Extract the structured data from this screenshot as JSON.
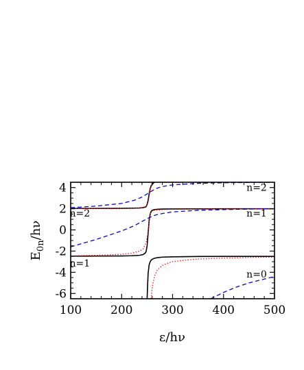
{
  "chart_data": {
    "type": "line",
    "xlabel": "ε/hν",
    "ylabel_main": "E",
    "ylabel_sub": "0n",
    "ylabel_tail": "/hν",
    "xlim": [
      100,
      500
    ],
    "ylim": [
      -6.5,
      4.5
    ],
    "xticks": [
      100,
      200,
      300,
      400,
      500
    ],
    "yticks": [
      -6,
      -4,
      -2,
      0,
      2,
      4
    ],
    "grid": false,
    "annotations": [
      {
        "text": "n=2",
        "x": 465,
        "y": 3.7
      },
      {
        "text": "n=1",
        "x": 465,
        "y": 1.25
      },
      {
        "text": "n=0",
        "x": 465,
        "y": -4.5
      },
      {
        "text": "n=2",
        "x": 118,
        "y": 1.25
      },
      {
        "text": "n=1",
        "x": 118,
        "y": -3.45
      }
    ],
    "series": [
      {
        "color": "#000000",
        "dash": "solid",
        "x": [
          100,
          150,
          200,
          220,
          235,
          242,
          246,
          248,
          250,
          252,
          254,
          256,
          258,
          260,
          264,
          270,
          280,
          300,
          350,
          400,
          450,
          500
        ],
        "y": [
          2.03,
          2.03,
          2.04,
          2.05,
          2.07,
          2.1,
          2.15,
          2.2,
          2.4,
          2.8,
          3.4,
          3.9,
          4.15,
          4.3,
          4.5,
          4.55,
          4.55,
          4.55,
          4.55,
          4.55,
          4.55,
          4.55
        ]
      },
      {
        "color": "#000000",
        "dash": "solid",
        "x": [
          100,
          150,
          200,
          220,
          235,
          242,
          246,
          248,
          250,
          252,
          254,
          256,
          258,
          260,
          264,
          270,
          280,
          300,
          350,
          400,
          450,
          500
        ],
        "y": [
          -2.48,
          -2.47,
          -2.46,
          -2.44,
          -2.4,
          -2.33,
          -2.2,
          -2.05,
          -1.5,
          -0.3,
          0.9,
          1.5,
          1.75,
          1.85,
          1.92,
          1.95,
          1.97,
          1.98,
          1.99,
          2.0,
          2.0,
          2.0
        ]
      },
      {
        "color": "#000000",
        "dash": "solid",
        "x": [
          250,
          251,
          252,
          254,
          256,
          258,
          260,
          264,
          270,
          280,
          300,
          350,
          400,
          450,
          500
        ],
        "y": [
          -6.5,
          -5.2,
          -4.1,
          -3.3,
          -3.0,
          -2.85,
          -2.78,
          -2.68,
          -2.62,
          -2.57,
          -2.54,
          -2.51,
          -2.5,
          -2.5,
          -2.5
        ]
      },
      {
        "color": "#ff0000",
        "dash": "dotted",
        "x": [
          100,
          150,
          200,
          220,
          235,
          242,
          248,
          252,
          254,
          256,
          258,
          260,
          265,
          270,
          280,
          300,
          350,
          400,
          450,
          500
        ],
        "y": [
          2.03,
          2.03,
          2.04,
          2.05,
          2.08,
          2.12,
          2.25,
          2.6,
          3.2,
          3.9,
          4.3,
          4.45,
          4.55,
          4.55,
          4.55,
          4.55,
          4.55,
          4.55,
          4.55,
          4.55
        ]
      },
      {
        "color": "#ff0000",
        "dash": "dotted",
        "x": [
          100,
          150,
          200,
          220,
          235,
          242,
          248,
          252,
          254,
          256,
          258,
          260,
          265,
          270,
          280,
          300,
          350,
          400,
          450,
          500
        ],
        "y": [
          -2.45,
          -2.4,
          -2.3,
          -2.2,
          -2.0,
          -1.8,
          -1.2,
          -0.2,
          0.8,
          1.5,
          1.7,
          1.8,
          1.85,
          1.88,
          1.92,
          1.95,
          1.97,
          1.98,
          1.99,
          2.0
        ]
      },
      {
        "color": "#ff0000",
        "dash": "dotted",
        "x": [
          258,
          260,
          262,
          265,
          270,
          280,
          290,
          300,
          325,
          350,
          400,
          450,
          500
        ],
        "y": [
          -6.5,
          -5.4,
          -4.9,
          -4.3,
          -3.8,
          -3.35,
          -3.15,
          -3.0,
          -2.85,
          -2.75,
          -2.65,
          -2.6,
          -2.57
        ]
      },
      {
        "color": "#0000dd",
        "dash": "dashed",
        "x": [
          100,
          150,
          200,
          225,
          240,
          250,
          260,
          270,
          280,
          300,
          350,
          400,
          450,
          500
        ],
        "y": [
          2.1,
          2.25,
          2.5,
          2.8,
          3.1,
          3.4,
          3.7,
          3.95,
          4.1,
          4.25,
          4.4,
          4.45,
          4.48,
          4.5
        ]
      },
      {
        "color": "#0000dd",
        "dash": "dashed",
        "x": [
          100,
          150,
          200,
          225,
          240,
          250,
          260,
          270,
          280,
          300,
          350,
          400,
          450,
          500
        ],
        "y": [
          -1.6,
          -0.9,
          -0.1,
          0.4,
          0.8,
          1.05,
          1.3,
          1.45,
          1.55,
          1.7,
          1.85,
          1.92,
          1.97,
          2.0
        ]
      },
      {
        "color": "#0000dd",
        "dash": "dashed",
        "x": [
          375,
          400,
          425,
          450,
          475,
          500
        ],
        "y": [
          -6.5,
          -5.9,
          -5.4,
          -5.0,
          -4.7,
          -4.4
        ]
      }
    ]
  }
}
